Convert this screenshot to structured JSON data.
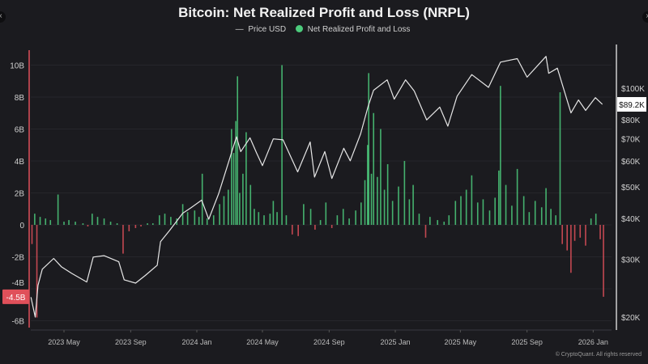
{
  "chart_data": {
    "type": "bar+line",
    "title": "Bitcoin: Net Realized Profit and Loss (NRPL)",
    "legend": [
      "Price USD",
      "Net Realized Profit and Loss"
    ],
    "legend_placement": "top-center",
    "colors": {
      "price": "#e6e6e6",
      "profit": "#4ccb7c",
      "loss": "#e0505a",
      "background": "#1b1b1f"
    },
    "left_axis": {
      "ticks": [
        "10B",
        "8B",
        "6B",
        "4B",
        "2B",
        "0",
        "-2B",
        "-4B",
        "-6B"
      ],
      "values": [
        10,
        8,
        6,
        4,
        2,
        0,
        -2,
        -4,
        -6
      ],
      "range": [
        -6.3,
        10.5
      ],
      "unit": "B",
      "current_label": "-4.5B",
      "current_value": -4.5
    },
    "right_axis": {
      "scale": "log",
      "ticks": [
        "$100K",
        "$80K",
        "$70K",
        "$60K",
        "$50K",
        "$40K",
        "$30K",
        "$20K"
      ],
      "values": [
        100000,
        80000,
        70000,
        60000,
        50000,
        40000,
        30000,
        20000
      ],
      "current_label": "$89.2K",
      "current_value": 89200
    },
    "x_ticks": [
      "2023 May",
      "2023 Sep",
      "2024 Jan",
      "2024 May",
      "2024 Sep",
      "2025 Jan",
      "2025 May",
      "2025 Sep",
      "2026 Jan"
    ],
    "x_tick_dates": [
      "2023-05-01",
      "2023-09-01",
      "2024-01-01",
      "2024-05-01",
      "2024-09-01",
      "2025-01-01",
      "2025-05-01",
      "2025-09-01",
      "2026-01-01"
    ],
    "grid": true,
    "price": [
      [
        "2023-03-01",
        23000
      ],
      [
        "2023-03-09",
        20000
      ],
      [
        "2023-03-14",
        25000
      ],
      [
        "2023-03-22",
        28000
      ],
      [
        "2023-04-12",
        30200
      ],
      [
        "2023-04-26",
        28500
      ],
      [
        "2023-05-15",
        27200
      ],
      [
        "2023-06-12",
        25600
      ],
      [
        "2023-06-24",
        30500
      ],
      [
        "2023-07-14",
        30800
      ],
      [
        "2023-08-10",
        29500
      ],
      [
        "2023-08-20",
        26000
      ],
      [
        "2023-09-10",
        25400
      ],
      [
        "2023-09-28",
        26800
      ],
      [
        "2023-10-20",
        28800
      ],
      [
        "2023-10-26",
        34000
      ],
      [
        "2023-11-12",
        36800
      ],
      [
        "2023-12-06",
        41500
      ],
      [
        "2023-12-20",
        43000
      ],
      [
        "2024-01-10",
        45500
      ],
      [
        "2024-01-23",
        39800
      ],
      [
        "2024-02-10",
        47500
      ],
      [
        "2024-02-28",
        59000
      ],
      [
        "2024-03-14",
        71000
      ],
      [
        "2024-03-22",
        64000
      ],
      [
        "2024-04-08",
        70500
      ],
      [
        "2024-04-20",
        63500
      ],
      [
        "2024-05-01",
        58000
      ],
      [
        "2024-05-21",
        70000
      ],
      [
        "2024-06-08",
        69500
      ],
      [
        "2024-07-05",
        55500
      ],
      [
        "2024-07-28",
        68500
      ],
      [
        "2024-08-05",
        53500
      ],
      [
        "2024-08-24",
        64000
      ],
      [
        "2024-09-06",
        53000
      ],
      [
        "2024-09-28",
        65500
      ],
      [
        "2024-10-10",
        60000
      ],
      [
        "2024-10-29",
        72500
      ],
      [
        "2024-11-12",
        88000
      ],
      [
        "2024-11-22",
        98500
      ],
      [
        "2024-12-17",
        106000
      ],
      [
        "2024-12-30",
        92500
      ],
      [
        "2025-01-20",
        106000
      ],
      [
        "2025-02-05",
        98000
      ],
      [
        "2025-02-28",
        80000
      ],
      [
        "2025-03-24",
        87500
      ],
      [
        "2025-04-08",
        76500
      ],
      [
        "2025-04-25",
        94500
      ],
      [
        "2025-05-22",
        110000
      ],
      [
        "2025-06-22",
        100500
      ],
      [
        "2025-07-14",
        120000
      ],
      [
        "2025-08-14",
        123000
      ],
      [
        "2025-09-01",
        108000
      ],
      [
        "2025-10-06",
        125000
      ],
      [
        "2025-10-11",
        111000
      ],
      [
        "2025-10-27",
        115000
      ],
      [
        "2025-11-21",
        84000
      ],
      [
        "2025-12-05",
        92000
      ],
      [
        "2025-12-18",
        85500
      ],
      [
        "2026-01-05",
        93500
      ],
      [
        "2026-01-18",
        89200
      ]
    ],
    "nrpl": [
      [
        "2023-03-03",
        -1.2
      ],
      [
        "2023-03-08",
        0.7
      ],
      [
        "2023-03-12",
        -5.8
      ],
      [
        "2023-03-18",
        0.5
      ],
      [
        "2023-03-28",
        0.4
      ],
      [
        "2023-04-06",
        0.3
      ],
      [
        "2023-04-20",
        1.9
      ],
      [
        "2023-05-01",
        0.2
      ],
      [
        "2023-05-10",
        0.3
      ],
      [
        "2023-05-22",
        0.2
      ],
      [
        "2023-06-05",
        0.1
      ],
      [
        "2023-06-14",
        -0.1
      ],
      [
        "2023-06-22",
        0.7
      ],
      [
        "2023-07-02",
        0.5
      ],
      [
        "2023-07-14",
        0.4
      ],
      [
        "2023-07-26",
        0.2
      ],
      [
        "2023-08-07",
        0.1
      ],
      [
        "2023-08-18",
        -1.8
      ],
      [
        "2023-08-29",
        -0.4
      ],
      [
        "2023-09-10",
        -0.2
      ],
      [
        "2023-09-20",
        -0.1
      ],
      [
        "2023-10-02",
        0.1
      ],
      [
        "2023-10-12",
        0.1
      ],
      [
        "2023-10-24",
        0.6
      ],
      [
        "2023-11-03",
        0.7
      ],
      [
        "2023-11-14",
        0.5
      ],
      [
        "2023-11-25",
        0.4
      ],
      [
        "2023-12-06",
        1.3
      ],
      [
        "2023-12-15",
        0.8
      ],
      [
        "2023-12-28",
        0.9
      ],
      [
        "2024-01-05",
        0.5
      ],
      [
        "2024-01-11",
        3.2
      ],
      [
        "2024-01-20",
        0.4
      ],
      [
        "2024-02-01",
        0.6
      ],
      [
        "2024-02-12",
        1.3
      ],
      [
        "2024-02-20",
        1.8
      ],
      [
        "2024-02-28",
        2.2
      ],
      [
        "2024-03-05",
        6.0
      ],
      [
        "2024-03-09",
        4.5
      ],
      [
        "2024-03-13",
        6.5
      ],
      [
        "2024-03-16",
        9.3
      ],
      [
        "2024-03-20",
        2.0
      ],
      [
        "2024-03-26",
        3.2
      ],
      [
        "2024-04-01",
        5.8
      ],
      [
        "2024-04-09",
        2.5
      ],
      [
        "2024-04-16",
        1.0
      ],
      [
        "2024-04-24",
        0.8
      ],
      [
        "2024-05-04",
        0.6
      ],
      [
        "2024-05-15",
        0.7
      ],
      [
        "2024-05-21",
        1.5
      ],
      [
        "2024-05-28",
        0.8
      ],
      [
        "2024-06-06",
        10.0
      ],
      [
        "2024-06-14",
        0.6
      ],
      [
        "2024-06-25",
        -0.6
      ],
      [
        "2024-07-06",
        -0.7
      ],
      [
        "2024-07-16",
        1.3
      ],
      [
        "2024-07-29",
        1.0
      ],
      [
        "2024-08-06",
        -0.3
      ],
      [
        "2024-08-16",
        0.3
      ],
      [
        "2024-08-26",
        1.4
      ],
      [
        "2024-09-06",
        -0.2
      ],
      [
        "2024-09-16",
        0.6
      ],
      [
        "2024-09-27",
        1.0
      ],
      [
        "2024-10-08",
        0.4
      ],
      [
        "2024-10-20",
        0.9
      ],
      [
        "2024-10-30",
        1.4
      ],
      [
        "2024-11-06",
        2.8
      ],
      [
        "2024-11-11",
        5.0
      ],
      [
        "2024-11-13",
        9.5
      ],
      [
        "2024-11-18",
        3.2
      ],
      [
        "2024-11-22",
        7.0
      ],
      [
        "2024-11-29",
        3.0
      ],
      [
        "2024-12-05",
        6.0
      ],
      [
        "2024-12-12",
        2.2
      ],
      [
        "2024-12-18",
        3.8
      ],
      [
        "2024-12-27",
        1.5
      ],
      [
        "2025-01-07",
        2.4
      ],
      [
        "2025-01-18",
        4.0
      ],
      [
        "2025-01-27",
        1.6
      ],
      [
        "2025-02-03",
        2.5
      ],
      [
        "2025-02-14",
        0.7
      ],
      [
        "2025-02-26",
        -0.8
      ],
      [
        "2025-03-06",
        0.5
      ],
      [
        "2025-03-20",
        0.3
      ],
      [
        "2025-04-01",
        0.2
      ],
      [
        "2025-04-10",
        0.6
      ],
      [
        "2025-04-22",
        1.5
      ],
      [
        "2025-05-02",
        1.8
      ],
      [
        "2025-05-12",
        2.2
      ],
      [
        "2025-05-22",
        3.1
      ],
      [
        "2025-06-02",
        1.4
      ],
      [
        "2025-06-12",
        1.6
      ],
      [
        "2025-06-24",
        0.9
      ],
      [
        "2025-07-04",
        1.7
      ],
      [
        "2025-07-11",
        3.4
      ],
      [
        "2025-07-14",
        8.7
      ],
      [
        "2025-07-24",
        2.5
      ],
      [
        "2025-08-04",
        1.2
      ],
      [
        "2025-08-14",
        3.5
      ],
      [
        "2025-08-26",
        1.8
      ],
      [
        "2025-09-05",
        0.8
      ],
      [
        "2025-09-16",
        1.5
      ],
      [
        "2025-09-28",
        1.1
      ],
      [
        "2025-10-06",
        2.3
      ],
      [
        "2025-10-15",
        1.0
      ],
      [
        "2025-10-24",
        0.6
      ],
      [
        "2025-11-01",
        8.3
      ],
      [
        "2025-11-05",
        -1.2
      ],
      [
        "2025-11-14",
        -1.6
      ],
      [
        "2025-11-21",
        -3.0
      ],
      [
        "2025-11-28",
        -1.0
      ],
      [
        "2025-12-08",
        -0.8
      ],
      [
        "2025-12-18",
        -1.3
      ],
      [
        "2025-12-28",
        0.4
      ],
      [
        "2026-01-06",
        0.7
      ],
      [
        "2026-01-14",
        -0.9
      ],
      [
        "2026-01-20",
        -4.5
      ]
    ]
  },
  "footer": {
    "credit": "© CryptoQuant. All rights reserved",
    "watermark": "CryptoQuant"
  }
}
